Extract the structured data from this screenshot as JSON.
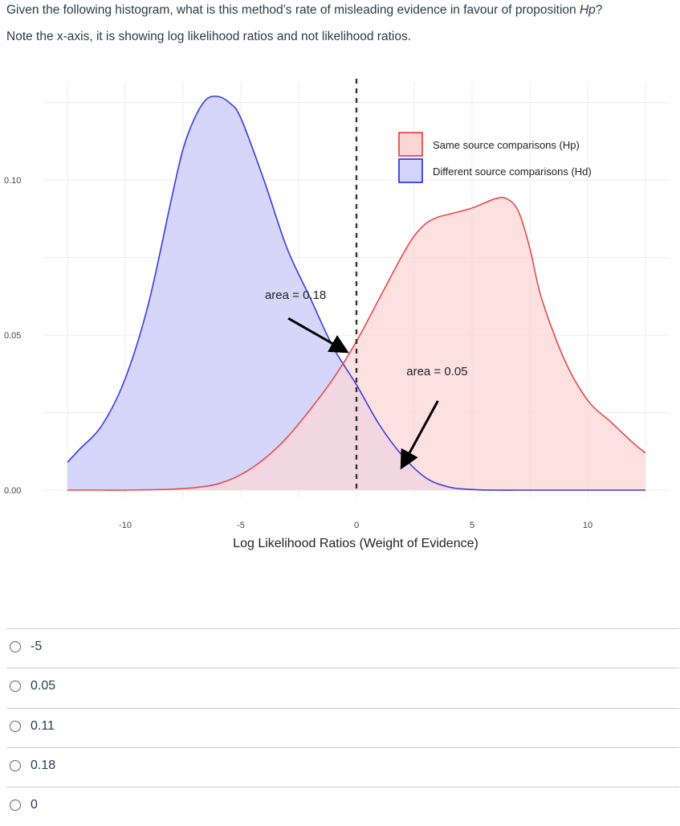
{
  "question": {
    "line1_before": "Given the following histogram, what is this method’s rate of misleading evidence in favour of proposition ",
    "line1_emph": "Hp",
    "line1_after": "?",
    "line2": "Note the x-axis, it is showing log likelihood ratios and not likelihood ratios."
  },
  "chart_data": {
    "type": "area",
    "xlabel": "Log Likelihood Ratios (Weight of Evidence)",
    "ylabel": "",
    "xlim": [
      -12.5,
      12.5
    ],
    "ylim": [
      0,
      0.127
    ],
    "x_ticks": [
      -10,
      -5,
      0,
      5,
      10
    ],
    "x_tick_labels": [
      "-10",
      "-5",
      "0",
      "5",
      "10"
    ],
    "y_ticks": [
      0.0,
      0.05,
      0.1
    ],
    "y_tick_labels": [
      "0.00",
      "0.05",
      "0.10"
    ],
    "grid": true,
    "legend_position": "top-right",
    "threshold_line": 0,
    "series": [
      {
        "name": "Same source comparisons (Hp)",
        "stroke": "#e64b4b",
        "fill": "#fcd5d5",
        "x": [
          -12.5,
          -11,
          -10,
          -9,
          -8,
          -7,
          -6,
          -5,
          -4,
          -3,
          -2,
          -1,
          0,
          1,
          2,
          2.5,
          3,
          3.5,
          4,
          5,
          6,
          6.5,
          7,
          7.5,
          8,
          9,
          10,
          11,
          12,
          12.5
        ],
        "y": [
          0.0,
          0.0,
          0.0,
          0.0001,
          0.0003,
          0.0008,
          0.002,
          0.005,
          0.01,
          0.017,
          0.026,
          0.036,
          0.048,
          0.062,
          0.076,
          0.082,
          0.086,
          0.088,
          0.089,
          0.091,
          0.094,
          0.094,
          0.09,
          0.078,
          0.062,
          0.042,
          0.029,
          0.022,
          0.015,
          0.012
        ]
      },
      {
        "name": "Different source comparisons (Hd)",
        "stroke": "#3b3be0",
        "fill": "#d4d4fb",
        "x": [
          -12.5,
          -12,
          -11,
          -10,
          -9,
          -8,
          -7.5,
          -7,
          -6.5,
          -6,
          -5.5,
          -5,
          -4,
          -3,
          -2,
          -1,
          0,
          1,
          2,
          3,
          4,
          5,
          6,
          7,
          8,
          10,
          12.5
        ],
        "y": [
          0.009,
          0.013,
          0.021,
          0.036,
          0.06,
          0.094,
          0.11,
          0.12,
          0.126,
          0.127,
          0.125,
          0.12,
          0.1,
          0.078,
          0.062,
          0.046,
          0.034,
          0.021,
          0.011,
          0.004,
          0.001,
          0.0002,
          0.0,
          0.0,
          0.0,
          0.0,
          0.0
        ]
      }
    ],
    "annotations": [
      {
        "text": "area = 0.18",
        "from": [
          -2.6,
          0.058
        ],
        "to": [
          -0.5,
          0.045
        ]
      },
      {
        "text": "area = 0.05",
        "from": [
          3.0,
          0.035
        ],
        "to": [
          2.0,
          0.009
        ]
      }
    ]
  },
  "choices": [
    "-5",
    "0.05",
    "0.11",
    "0.18",
    "0"
  ]
}
